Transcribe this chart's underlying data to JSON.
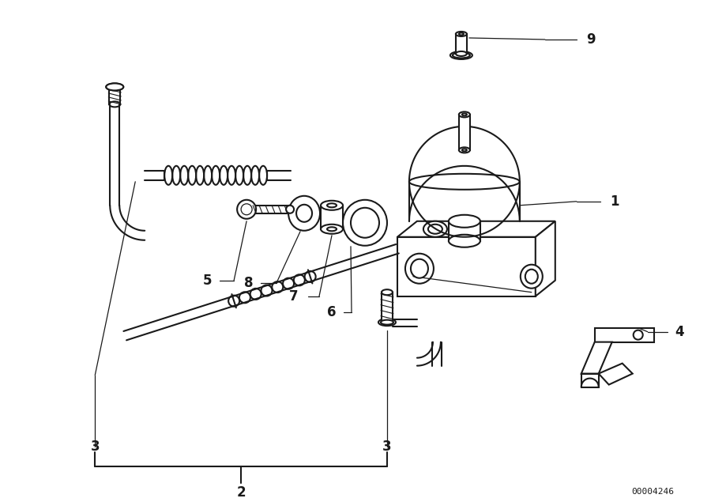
{
  "bg_color": "#ffffff",
  "lc": "#1a1a1a",
  "lw": 1.5,
  "tlw": 0.9,
  "fs": 12,
  "watermark": "00004246",
  "wm_fs": 8
}
